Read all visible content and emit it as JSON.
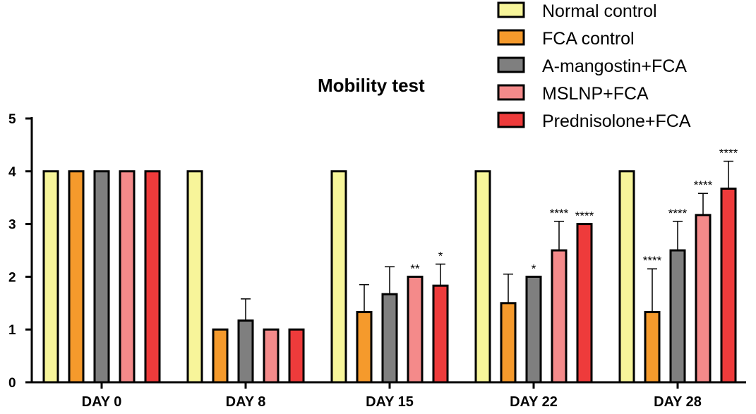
{
  "chart_data": {
    "type": "bar",
    "title": "Mobility test",
    "xlabel": "",
    "ylabel": "",
    "ylim": [
      0,
      5
    ],
    "yticks": [
      "0",
      "1",
      "2",
      "3",
      "4",
      "5"
    ],
    "categories": [
      "DAY 0",
      "DAY 8",
      "DAY 15",
      "DAY 22",
      "DAY 28"
    ],
    "legend_position": "top-right",
    "series": [
      {
        "name": "Normal control",
        "color": "#f7f59a",
        "values": [
          4,
          4,
          4,
          4,
          4
        ],
        "errors": [
          0,
          0,
          0,
          0,
          0
        ],
        "significance": [
          "",
          "",
          "",
          "",
          ""
        ]
      },
      {
        "name": "FCA control",
        "color": "#f59a2c",
        "values": [
          4,
          1,
          1.33,
          1.5,
          1.33
        ],
        "errors": [
          0,
          0,
          0.52,
          0.55,
          0.82
        ],
        "significance": [
          "",
          "",
          "",
          "",
          "****"
        ]
      },
      {
        "name": "A-mangostin+FCA",
        "color": "#7f7f7f",
        "values": [
          4,
          1.17,
          1.67,
          2,
          2.5
        ],
        "errors": [
          0,
          0.41,
          0.52,
          0,
          0.55
        ],
        "significance": [
          "",
          "",
          "",
          "*",
          "****"
        ]
      },
      {
        "name": "MSLNP+FCA",
        "color": "#f48a8a",
        "values": [
          4,
          1,
          2,
          2.5,
          3.17
        ],
        "errors": [
          0,
          0,
          0,
          0.55,
          0.41
        ],
        "significance": [
          "",
          "",
          "**",
          "****",
          "****"
        ]
      },
      {
        "name": "Prednisolone+FCA",
        "color": "#ee3b3b",
        "values": [
          4,
          1,
          1.83,
          3,
          3.67
        ],
        "errors": [
          0,
          0,
          0.41,
          0,
          0.52
        ],
        "significance": [
          "",
          "",
          "*",
          "****",
          "****"
        ]
      }
    ]
  }
}
